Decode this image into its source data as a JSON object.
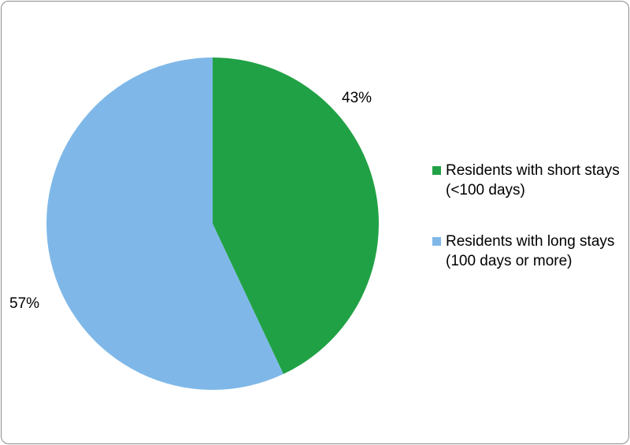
{
  "chart_data": {
    "type": "pie",
    "slices": [
      {
        "label": "Residents with short stays (<100 days)",
        "value": 43,
        "display": "43%",
        "color": "#21a145"
      },
      {
        "label": "Residents with long stays (100 days or more)",
        "value": 57,
        "display": "57%",
        "color": "#7fb8e8"
      }
    ],
    "legend_position": "right"
  }
}
